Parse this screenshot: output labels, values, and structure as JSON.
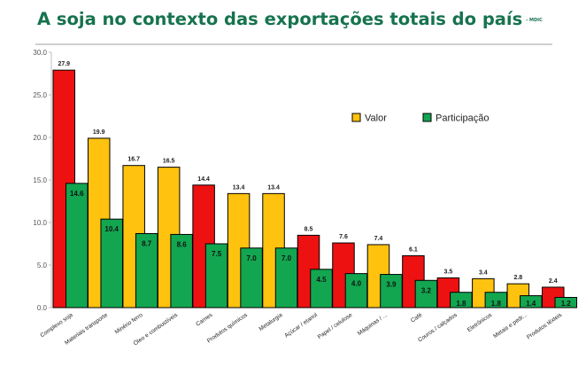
{
  "title": "A soja no contexto das exportações totais do país",
  "source": "- MDIC",
  "colors": {
    "title": "#16734f",
    "valor": "#ffc20e",
    "participacao": "#12a650",
    "highlight": "#ee1111",
    "bar_stroke": "#000000",
    "grid": "#d9d9d9"
  },
  "chart_data": {
    "type": "bar",
    "categories": [
      "Complexo soja",
      "Materiais transporte",
      "Minério ferro",
      "Óleo e combustíveis",
      "Carnes",
      "Produtos químicos",
      "Metalurgia",
      "Açúcar / etanol",
      "Papel / celulose",
      "Máquinas / ...",
      "Café",
      "Couros / calçados",
      "Eletrônicos",
      "Metais e pedr...",
      "Produtos têxteis"
    ],
    "series": [
      {
        "name": "Valor",
        "values": [
          27.9,
          19.9,
          16.7,
          16.5,
          14.4,
          13.4,
          13.4,
          8.5,
          7.6,
          7.4,
          6.1,
          3.5,
          3.4,
          2.8,
          2.4
        ],
        "labels": [
          "27.9",
          "19.9",
          "16.7",
          "16.5",
          "14.4",
          "13.4",
          "13.4",
          "8.5",
          "7.6",
          "7.4",
          "6.1",
          "3.5",
          "3.4",
          "2.8",
          "2.4"
        ]
      },
      {
        "name": "Participação",
        "values": [
          14.6,
          10.4,
          8.7,
          8.6,
          7.5,
          7.0,
          7.0,
          4.5,
          4.0,
          3.9,
          3.2,
          1.8,
          1.8,
          1.4,
          1.2
        ],
        "labels": [
          "14.6",
          "10.4",
          "8.7",
          "8.6",
          "7.5",
          "7.0",
          "7.0",
          "4.5",
          "4.0",
          "3.9",
          "3.2",
          "1.8",
          "1.8",
          "1.4",
          "1.2"
        ]
      }
    ],
    "highlighted_categories": [
      "Complexo soja",
      "Carnes",
      "Açúcar / etanol",
      "Papel / celulose",
      "Café",
      "Couros / calçados",
      "Produtos têxteis"
    ],
    "ylim": [
      0,
      30
    ],
    "yticks": [
      "0.0",
      "5.0",
      "10.0",
      "15.0",
      "20.0",
      "25.0",
      "30.0"
    ],
    "xlabel": "",
    "ylabel": "",
    "grid": false,
    "legend_position": "right"
  }
}
